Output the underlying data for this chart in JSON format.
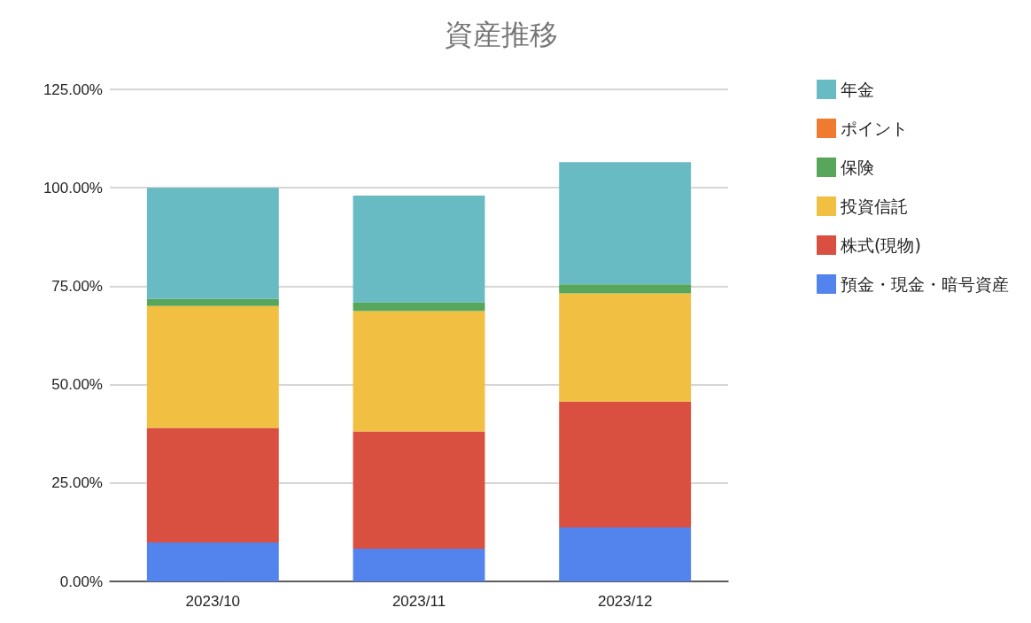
{
  "chart_data": {
    "type": "bar",
    "title": "資産推移",
    "categories": [
      "2023/10",
      "2023/11",
      "2023/12"
    ],
    "stacked": true,
    "series": [
      {
        "name": "預金・現金・暗号資産",
        "color": "#5383ec",
        "values": [
          9.9,
          8.3,
          13.7
        ]
      },
      {
        "name": "株式(現物)",
        "color": "#d95040",
        "values": [
          29.1,
          29.8,
          32.0
        ]
      },
      {
        "name": "投資信託",
        "color": "#f1bf42",
        "values": [
          31.0,
          30.6,
          27.5
        ]
      },
      {
        "name": "保険",
        "color": "#58a55c",
        "values": [
          1.8,
          2.2,
          2.3
        ]
      },
      {
        "name": "ポイント",
        "color": "#ef7b31",
        "values": [
          0,
          0,
          0
        ]
      },
      {
        "name": "年金",
        "color": "#69bbc3",
        "values": [
          28.2,
          27.1,
          31.0
        ]
      }
    ],
    "ylim": [
      0,
      125
    ],
    "yticks": [
      {
        "value": 0,
        "label": "0.00%"
      },
      {
        "value": 25,
        "label": "25.00%"
      },
      {
        "value": 50,
        "label": "50.00%"
      },
      {
        "value": 75,
        "label": "75.00%"
      },
      {
        "value": 100,
        "label": "100.00%"
      },
      {
        "value": 125,
        "label": "125.00%"
      }
    ],
    "grid": "y",
    "legend": "right"
  }
}
